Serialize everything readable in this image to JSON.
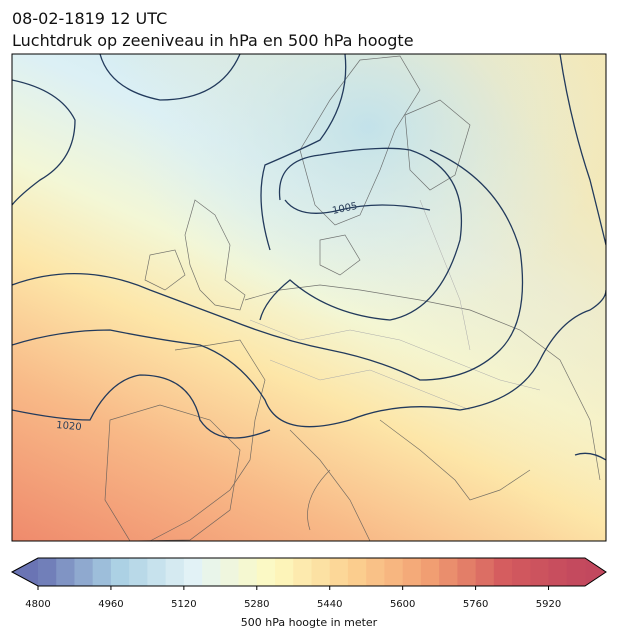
{
  "header": {
    "date": "08-02-1819 12 UTC",
    "title": "Luchtdruk op zeeniveau in hPa en 500 hPa hoogte"
  },
  "map": {
    "contour_labels": [
      "1005",
      "1020"
    ]
  },
  "colorbar": {
    "clim": [
      4800,
      6000
    ],
    "step": 40,
    "ticks": [
      4800,
      4960,
      5120,
      5280,
      5440,
      5600,
      5760,
      5920
    ],
    "colormap": [
      "#6a74b4",
      "#a9cfe3",
      "#e3f3f6",
      "#fdfac0",
      "#fcd191",
      "#f29f72",
      "#d35a5e",
      "#c2485e"
    ],
    "label": "500 hPa hoogte in meter"
  }
}
